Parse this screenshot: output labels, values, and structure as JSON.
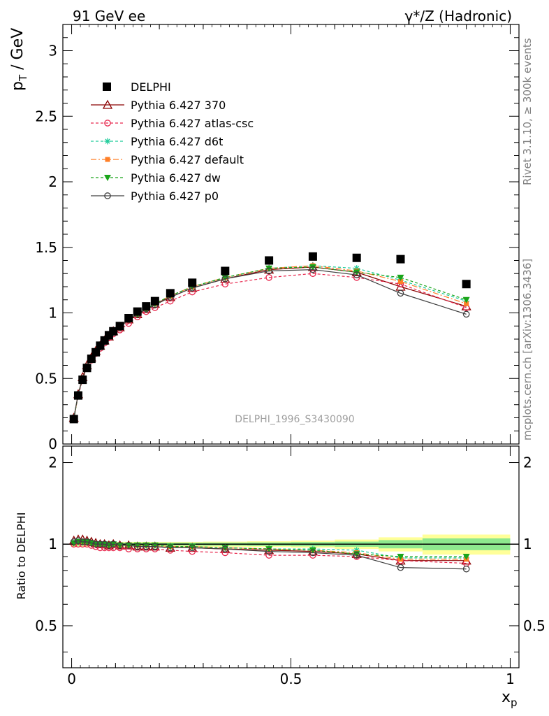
{
  "header": {
    "left_label": "91 GeV ee",
    "right_label": "γ*/Z (Hadronic)"
  },
  "side_text": {
    "rivet": "Rivet 3.1.10, ≥ 300k events",
    "mcplots": "mcplots.cern.ch [arXiv:1306.3436]"
  },
  "watermark": "DELPHI_1996_S3430090",
  "colors": {
    "data": "#000000",
    "p370": "#8b0000",
    "atlas": "#e8284e",
    "d6t": "#1fcc9a",
    "default": "#ff7f27",
    "dw": "#1aa51a",
    "p0": "#404040",
    "band_inner": "#8ee88e",
    "band_outer": "#ffff99"
  },
  "chart_data": [
    {
      "type": "scatter",
      "panel": "main",
      "xlabel": "x_p",
      "ylabel": "p_T / GeV",
      "xlim": [
        -0.02,
        1.02
      ],
      "ylim": [
        0,
        3.2
      ],
      "x_ticks": [
        "0",
        "0.5",
        "1"
      ],
      "y_ticks": [
        "0",
        "0.5",
        "1",
        "1.5",
        "2",
        "2.5",
        "3"
      ],
      "legend_position": "top-left",
      "x": [
        0.005,
        0.015,
        0.025,
        0.035,
        0.045,
        0.055,
        0.065,
        0.075,
        0.085,
        0.095,
        0.11,
        0.13,
        0.15,
        0.17,
        0.19,
        0.225,
        0.275,
        0.35,
        0.45,
        0.55,
        0.65,
        0.75,
        0.9
      ],
      "series": [
        {
          "name": "DELPHI",
          "marker": "filled-square",
          "values": [
            0.19,
            0.37,
            0.49,
            0.58,
            0.65,
            0.7,
            0.75,
            0.79,
            0.83,
            0.86,
            0.9,
            0.96,
            1.01,
            1.05,
            1.09,
            1.15,
            1.23,
            1.32,
            1.4,
            1.43,
            1.42,
            1.41,
            1.22
          ]
        },
        {
          "name": "Pythia 6.427 370",
          "marker": "open-triangle",
          "line": "solid",
          "values": [
            0.2,
            0.38,
            0.51,
            0.6,
            0.66,
            0.71,
            0.75,
            0.79,
            0.82,
            0.86,
            0.89,
            0.95,
            0.99,
            1.03,
            1.07,
            1.12,
            1.19,
            1.26,
            1.33,
            1.35,
            1.31,
            1.2,
            1.05
          ]
        },
        {
          "name": "Pythia 6.427 atlas-csc",
          "marker": "open-circle",
          "line": "dashed",
          "values": [
            0.19,
            0.37,
            0.49,
            0.58,
            0.64,
            0.69,
            0.73,
            0.77,
            0.81,
            0.84,
            0.87,
            0.92,
            0.97,
            1.01,
            1.04,
            1.09,
            1.16,
            1.22,
            1.27,
            1.3,
            1.27,
            1.22,
            1.04
          ]
        },
        {
          "name": "Pythia 6.427 d6t",
          "marker": "star",
          "line": "dashed",
          "values": [
            0.19,
            0.38,
            0.5,
            0.59,
            0.65,
            0.7,
            0.74,
            0.78,
            0.82,
            0.85,
            0.89,
            0.95,
            0.99,
            1.03,
            1.07,
            1.13,
            1.2,
            1.27,
            1.34,
            1.36,
            1.34,
            1.25,
            1.09
          ]
        },
        {
          "name": "Pythia 6.427 default",
          "marker": "filled-square-small",
          "line": "dash-dot",
          "values": [
            0.19,
            0.38,
            0.5,
            0.59,
            0.65,
            0.7,
            0.74,
            0.78,
            0.82,
            0.85,
            0.89,
            0.95,
            0.99,
            1.03,
            1.07,
            1.13,
            1.2,
            1.27,
            1.34,
            1.36,
            1.32,
            1.24,
            1.07
          ]
        },
        {
          "name": "Pythia 6.427 dw",
          "marker": "filled-triangle-down",
          "line": "dashed",
          "values": [
            0.19,
            0.38,
            0.5,
            0.59,
            0.65,
            0.7,
            0.74,
            0.78,
            0.82,
            0.85,
            0.89,
            0.95,
            0.99,
            1.03,
            1.07,
            1.13,
            1.2,
            1.27,
            1.34,
            1.35,
            1.31,
            1.27,
            1.1
          ]
        },
        {
          "name": "Pythia 6.427 p0",
          "marker": "open-circle",
          "line": "solid",
          "values": [
            0.2,
            0.38,
            0.5,
            0.59,
            0.65,
            0.7,
            0.74,
            0.78,
            0.82,
            0.85,
            0.89,
            0.95,
            0.99,
            1.03,
            1.06,
            1.12,
            1.19,
            1.26,
            1.32,
            1.33,
            1.29,
            1.15,
            0.99
          ]
        }
      ]
    },
    {
      "type": "line",
      "panel": "ratio",
      "xlabel": "x_p",
      "ylabel": "Ratio to DELPHI",
      "xlim": [
        -0.02,
        1.02
      ],
      "ylim": [
        0.35,
        2.3
      ],
      "x_ticks": [
        "0",
        "0.5",
        "1"
      ],
      "y_ticks": [
        "0.5",
        "1",
        "2"
      ],
      "log_y": true,
      "band": {
        "x_edges": [
          0.0,
          0.01,
          0.02,
          0.03,
          0.04,
          0.05,
          0.06,
          0.07,
          0.08,
          0.09,
          0.1,
          0.12,
          0.14,
          0.16,
          0.18,
          0.2,
          0.25,
          0.3,
          0.4,
          0.5,
          0.6,
          0.7,
          0.8,
          1.0
        ],
        "inner": [
          0.015,
          0.012,
          0.012,
          0.012,
          0.012,
          0.012,
          0.012,
          0.012,
          0.012,
          0.012,
          0.012,
          0.012,
          0.012,
          0.012,
          0.012,
          0.012,
          0.012,
          0.013,
          0.015,
          0.018,
          0.022,
          0.035,
          0.05
        ],
        "outer": [
          0.025,
          0.02,
          0.02,
          0.02,
          0.02,
          0.02,
          0.02,
          0.02,
          0.02,
          0.02,
          0.02,
          0.02,
          0.02,
          0.02,
          0.02,
          0.02,
          0.02,
          0.022,
          0.025,
          0.03,
          0.04,
          0.06,
          0.085
        ]
      },
      "x": [
        0.005,
        0.015,
        0.025,
        0.035,
        0.045,
        0.055,
        0.065,
        0.075,
        0.085,
        0.095,
        0.11,
        0.13,
        0.15,
        0.17,
        0.19,
        0.225,
        0.275,
        0.35,
        0.45,
        0.55,
        0.65,
        0.75,
        0.9
      ],
      "series": [
        {
          "name": "Pythia 6.427 370",
          "values": [
            1.03,
            1.04,
            1.04,
            1.03,
            1.02,
            1.01,
            1.0,
            1.0,
            0.99,
            1.0,
            0.99,
            0.99,
            0.98,
            0.98,
            0.98,
            0.97,
            0.97,
            0.96,
            0.95,
            0.94,
            0.92,
            0.87,
            0.87
          ]
        },
        {
          "name": "Pythia 6.427 atlas-csc",
          "values": [
            1.0,
            1.0,
            1.0,
            1.0,
            0.99,
            0.98,
            0.97,
            0.97,
            0.97,
            0.97,
            0.97,
            0.96,
            0.96,
            0.96,
            0.96,
            0.95,
            0.94,
            0.93,
            0.91,
            0.91,
            0.9,
            0.87,
            0.85
          ]
        },
        {
          "name": "Pythia 6.427 d6t",
          "values": [
            1.01,
            1.02,
            1.02,
            1.02,
            1.01,
            1.0,
            1.0,
            1.0,
            0.99,
            1.0,
            0.99,
            0.99,
            0.99,
            0.99,
            0.99,
            0.98,
            0.98,
            0.97,
            0.96,
            0.96,
            0.95,
            0.89,
            0.89
          ]
        },
        {
          "name": "Pythia 6.427 default",
          "values": [
            1.01,
            1.02,
            1.02,
            1.02,
            1.01,
            1.0,
            1.0,
            1.0,
            0.99,
            1.0,
            0.99,
            0.99,
            0.99,
            0.99,
            0.99,
            0.98,
            0.98,
            0.97,
            0.96,
            0.95,
            0.93,
            0.88,
            0.88
          ]
        },
        {
          "name": "Pythia 6.427 dw",
          "values": [
            1.01,
            1.02,
            1.02,
            1.02,
            1.01,
            1.0,
            1.0,
            1.0,
            0.99,
            1.0,
            0.99,
            0.99,
            0.99,
            0.99,
            0.99,
            0.98,
            0.98,
            0.97,
            0.96,
            0.95,
            0.92,
            0.9,
            0.9
          ]
        },
        {
          "name": "Pythia 6.427 p0",
          "values": [
            1.02,
            1.03,
            1.02,
            1.02,
            1.01,
            1.0,
            1.0,
            1.0,
            0.99,
            1.0,
            0.99,
            0.99,
            0.98,
            0.98,
            0.98,
            0.97,
            0.97,
            0.96,
            0.94,
            0.93,
            0.91,
            0.82,
            0.81
          ]
        }
      ]
    }
  ]
}
